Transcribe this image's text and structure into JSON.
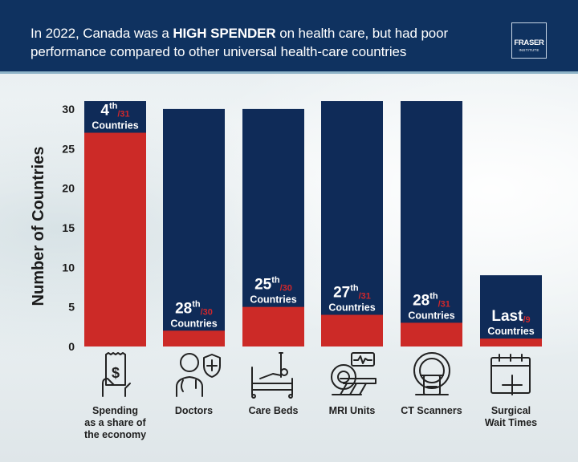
{
  "header": {
    "title_part1": "In 2022, Canada was a ",
    "title_bold": "HIGH SPENDER",
    "title_part2": " on health care, but had poor performance compared to other universal health-care countries",
    "logo_line1": "FRASER",
    "logo_line2": "INSTITUTE"
  },
  "chart_data": {
    "type": "bar",
    "stacked": true,
    "ylabel": "Number of Countries",
    "ylim": [
      0,
      31
    ],
    "yticks": [
      "0",
      "5",
      "10",
      "15",
      "20",
      "25",
      "30"
    ],
    "grid": false,
    "categories": [
      "Spending as a share of the economy",
      "Doctors",
      "Care Beds",
      "MRI Units",
      "CT Scanners",
      "Surgical Wait Times"
    ],
    "category_lines": [
      [
        "Spending",
        "as a share of",
        "the economy"
      ],
      [
        "Doctors"
      ],
      [
        "Care Beds"
      ],
      [
        "MRI Units"
      ],
      [
        "CT Scanners"
      ],
      [
        "Surgical",
        "Wait Times"
      ]
    ],
    "icons": [
      "receipt-dollar-icon",
      "doctor-icon",
      "hospital-bed-icon",
      "mri-machine-icon",
      "ct-scanner-icon",
      "calendar-plus-icon"
    ],
    "totals": [
      31,
      30,
      30,
      31,
      31,
      9
    ],
    "red_values": [
      27,
      2,
      5,
      4,
      3,
      1
    ],
    "rank_main": [
      "4",
      "28",
      "25",
      "27",
      "28",
      "Last"
    ],
    "rank_suffix": [
      "th",
      "th",
      "th",
      "th",
      "th",
      ""
    ],
    "rank_denominator": [
      "31",
      "30",
      "30",
      "31",
      "31",
      "9"
    ],
    "countries_label": "Countries",
    "colors": {
      "navy": "#0f2b58",
      "red": "#cc2a27",
      "header": "#0f3260"
    }
  }
}
